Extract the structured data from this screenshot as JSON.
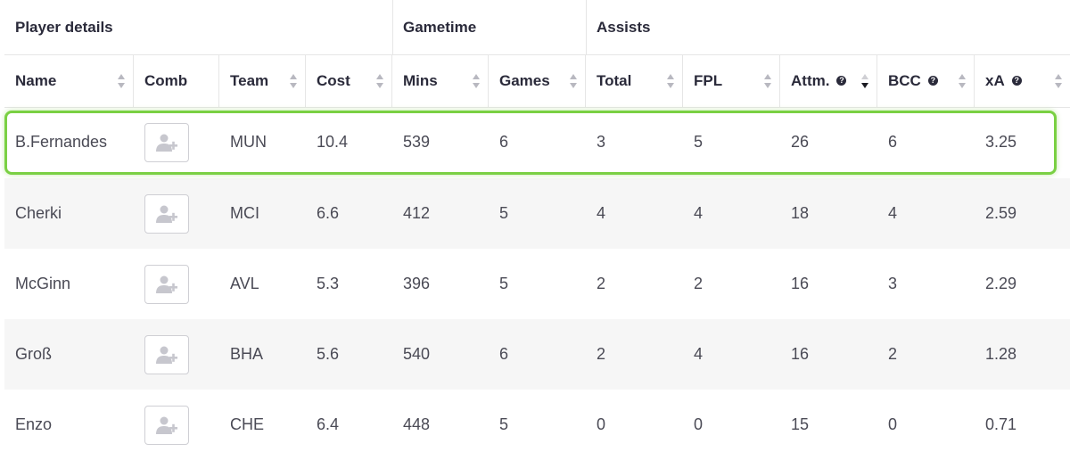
{
  "groups": {
    "player_details": "Player details",
    "gametime": "Gametime",
    "assists": "Assists"
  },
  "columns": {
    "name": "Name",
    "comb": "Comb",
    "team": "Team",
    "cost": "Cost",
    "mins": "Mins",
    "games": "Games",
    "total": "Total",
    "fpl": "FPL",
    "attm": "Attm.",
    "bcc": "BCC",
    "xa": "xA"
  },
  "icons": {
    "help": "question-circle-icon",
    "sort": "sort-arrows-icon",
    "add_user": "add-user-icon"
  },
  "colors": {
    "highlight": "#7ad043",
    "alt_row": "#f6f6f6"
  },
  "sorted_column": "attm",
  "sort_direction": "desc",
  "rows": [
    {
      "name": "B.Fernandes",
      "team": "MUN",
      "cost": "10.4",
      "mins": "539",
      "games": "6",
      "total": "3",
      "fpl": "5",
      "attm": "26",
      "bcc": "6",
      "xa": "3.25"
    },
    {
      "name": "Cherki",
      "team": "MCI",
      "cost": "6.6",
      "mins": "412",
      "games": "5",
      "total": "4",
      "fpl": "4",
      "attm": "18",
      "bcc": "4",
      "xa": "2.59"
    },
    {
      "name": "McGinn",
      "team": "AVL",
      "cost": "5.3",
      "mins": "396",
      "games": "5",
      "total": "2",
      "fpl": "2",
      "attm": "16",
      "bcc": "3",
      "xa": "2.29"
    },
    {
      "name": "Groß",
      "team": "BHA",
      "cost": "5.6",
      "mins": "540",
      "games": "6",
      "total": "2",
      "fpl": "4",
      "attm": "16",
      "bcc": "2",
      "xa": "1.28"
    },
    {
      "name": "Enzo",
      "team": "CHE",
      "cost": "6.4",
      "mins": "448",
      "games": "5",
      "total": "0",
      "fpl": "0",
      "attm": "15",
      "bcc": "0",
      "xa": "0.71"
    }
  ]
}
